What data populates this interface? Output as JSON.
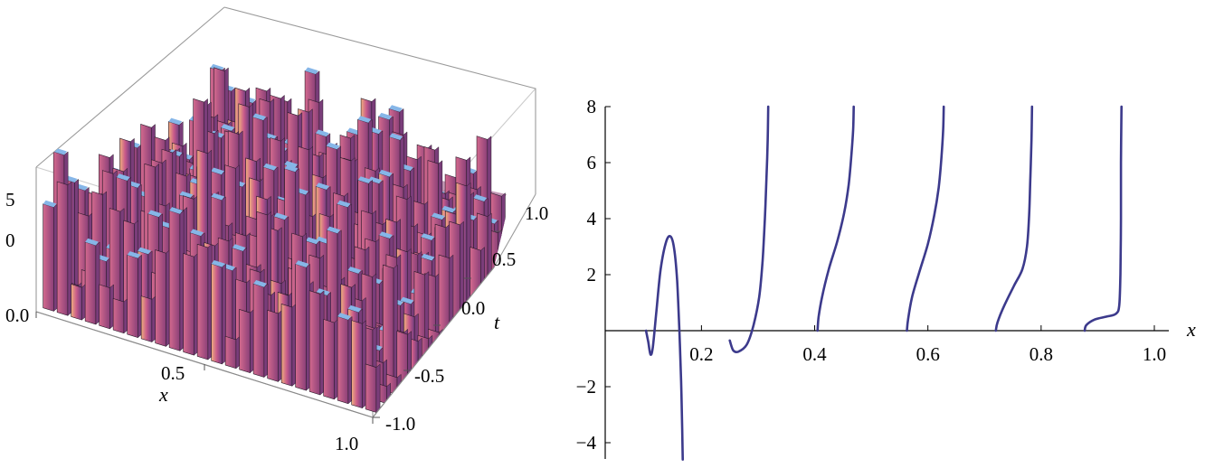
{
  "chart_data": [
    {
      "type": "surface3d",
      "xlabel": "x",
      "ylabel": "t",
      "zlabel": "",
      "x_ticks": [
        "0.0",
        "0.5",
        "1.0"
      ],
      "t_ticks": [
        "-1.0",
        "-0.5",
        "0.0",
        "0.5",
        "1.0"
      ],
      "z_ticks": [
        "0",
        "5"
      ],
      "xlim": [
        0,
        1
      ],
      "tlim": [
        -1,
        1
      ],
      "box": true,
      "surface_colors": [
        "#b8436f",
        "#7a3d7a",
        "#e9a07a",
        "#86b6e8"
      ]
    },
    {
      "type": "line",
      "xlabel": "x",
      "ylabel": "",
      "xlim": [
        0.03,
        1.0
      ],
      "ylim": [
        -4.6,
        8.0
      ],
      "x_ticks": [
        "0.2",
        "0.4",
        "0.6",
        "0.8",
        "1.0"
      ],
      "y_ticks": [
        "-4",
        "-2",
        "2",
        "4",
        "6",
        "8"
      ],
      "line_color": "#3c3a8c",
      "series": [
        {
          "points": [
            [
              0.102,
              0
            ],
            [
              0.106,
              -0.4
            ],
            [
              0.11,
              -0.85
            ],
            [
              0.114,
              -0.6
            ],
            [
              0.12,
              0.6
            ],
            [
              0.128,
              2.2
            ],
            [
              0.138,
              3.2
            ],
            [
              0.146,
              3.35
            ],
            [
              0.152,
              2.9
            ],
            [
              0.157,
              1.8
            ],
            [
              0.161,
              0
            ],
            [
              0.164,
              -1.8
            ],
            [
              0.166,
              -3.5
            ],
            [
              0.167,
              -4.6
            ]
          ]
        },
        {
          "points": [
            [
              0.25,
              -0.35
            ],
            [
              0.256,
              -0.7
            ],
            [
              0.265,
              -0.75
            ],
            [
              0.28,
              -0.5
            ],
            [
              0.292,
              0.2
            ],
            [
              0.302,
              1.2
            ],
            [
              0.308,
              2.5
            ],
            [
              0.312,
              4
            ],
            [
              0.315,
              5.5
            ],
            [
              0.317,
              6.8
            ],
            [
              0.318,
              8
            ]
          ]
        },
        {
          "points": [
            [
              0.405,
              0
            ],
            [
              0.407,
              0.5
            ],
            [
              0.413,
              1.2
            ],
            [
              0.425,
              2.2
            ],
            [
              0.44,
              3.2
            ],
            [
              0.452,
              4.2
            ],
            [
              0.46,
              5.2
            ],
            [
              0.465,
              6.3
            ],
            [
              0.468,
              7.2
            ],
            [
              0.469,
              8
            ]
          ]
        },
        {
          "points": [
            [
              0.563,
              0
            ],
            [
              0.565,
              0.4
            ],
            [
              0.572,
              1.2
            ],
            [
              0.585,
              2.1
            ],
            [
              0.6,
              3.1
            ],
            [
              0.611,
              4.1
            ],
            [
              0.619,
              5.1
            ],
            [
              0.624,
              6.2
            ],
            [
              0.627,
              7.2
            ],
            [
              0.628,
              8
            ]
          ]
        },
        {
          "points": [
            [
              0.72,
              0
            ],
            [
              0.723,
              0.3
            ],
            [
              0.735,
              0.9
            ],
            [
              0.752,
              1.6
            ],
            [
              0.767,
              2.2
            ],
            [
              0.775,
              3
            ],
            [
              0.779,
              4.2
            ],
            [
              0.781,
              5.5
            ],
            [
              0.783,
              6.8
            ],
            [
              0.784,
              8
            ]
          ]
        },
        {
          "points": [
            [
              0.877,
              0
            ],
            [
              0.88,
              0.2
            ],
            [
              0.895,
              0.4
            ],
            [
              0.915,
              0.5
            ],
            [
              0.932,
              0.6
            ],
            [
              0.938,
              0.9
            ],
            [
              0.94,
              2
            ],
            [
              0.941,
              4
            ],
            [
              0.941,
              6
            ],
            [
              0.942,
              8
            ]
          ]
        }
      ]
    }
  ]
}
